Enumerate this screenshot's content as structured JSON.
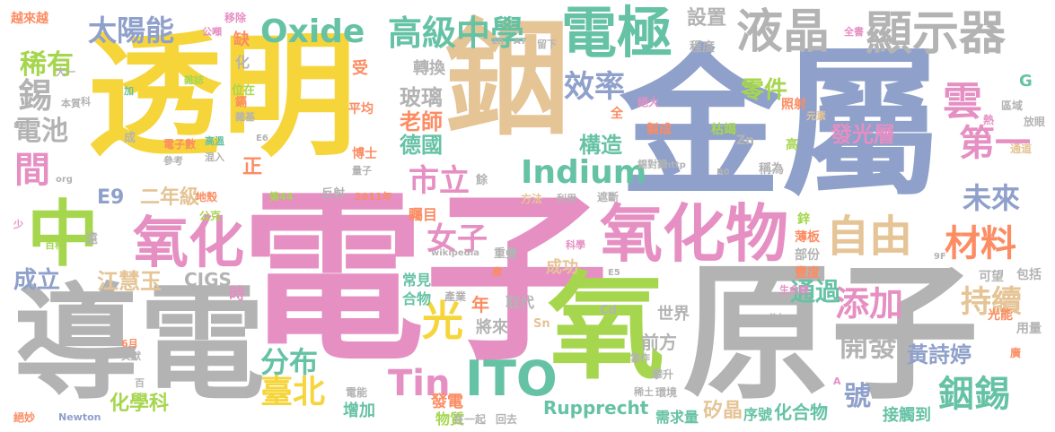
{
  "words": {
    "w_dianzi": "電子",
    "w_jinshu": "金屬",
    "w_touming": "透明",
    "w_yin": "銦",
    "w_yuanzi": "原子",
    "w_daodian": "導電",
    "w_yang": "氧",
    "w_zhong": "中",
    "w_yanghuawu": "氧化物",
    "w_yanghua": "氧化",
    "w_dianji": "電極",
    "w_yejing": "液晶",
    "w_xianshiqi": "顯示器",
    "w_ziyou": "自由",
    "w_ito": "ITO",
    "w_tin": "Tin",
    "w_indium": "Indium",
    "w_oxide": "Oxide",
    "w_gaojizhongxue": "高級中學",
    "w_taiyangneng": "太陽能",
    "w_xiyou": "稀有",
    "w_xi": "錫",
    "w_diandi": "電池",
    "w_jian": "間",
    "w_yinxi": "銦錫",
    "w_cailiao": "材料",
    "w_yun": "雲",
    "w_guang": "光",
    "w_nvzi": "女子",
    "w_shili": "市立",
    "w_taibei": "臺北",
    "w_tianjia": "添加",
    "w_chixu": "持續",
    "w_weilai": "未來",
    "w_diyi": "第一",
    "w_xiaolv": "效率",
    "w_boli": "玻璃",
    "w_laoshi": "老師",
    "w_deguo": "德國",
    "w_gouzao": "構造",
    "w_lingjian": "零件",
    "w_faguangceng": "發光層",
    "w_shezhi": "設置",
    "w_zhuanhuan": "轉換",
    "w_shou": "受",
    "w_e9": "E9",
    "w_ernianji": "二年級",
    "w_zheng": "正",
    "w_tonguo": "通過",
    "w_chengli": "成立",
    "w_jianghuiyu": "江慧玉",
    "w_fenbu": "分布",
    "w_kaifa": "開發",
    "w_huangshiting": "黃詩婷",
    "w_hao": "號",
    "w_qianfang": "前方",
    "w_shijie": "世界",
    "w_jianglai": "將來",
    "w_nian": "年",
    "w_cigs": "CIGS",
    "w_shi": "時",
    "w_huaxueke": "化學科",
    "w_rupprecht": "Rupprecht",
    "w_xujiliang": "需求量",
    "w_guijing": "矽晶",
    "w_xuhao": "序號",
    "w_huahewu": "化合物",
    "w_jiechudao": "接觸到",
    "w_zengjia": "增加",
    "w_fadian": "發電",
    "w_wuzhi": "物質",
    "w_chenggong": "成功",
    "w_changjian": "常見",
    "w_hewu": "合物",
    "w_quedai": "取代",
    "w_chanye": "產業",
    "w_zhumu": "矚目",
    "w_yuedu": "越來越",
    "w_yichu": "移除",
    "w_gongli": "公噸",
    "w_que": "缺",
    "w_hua": "化",
    "w_zazhi": "雜誌",
    "w_zaji": "雜基",
    "w_weizai": "位在",
    "w_pingjun": "平均",
    "w_gao": "高",
    "w_quan": "全",
    "w_jueda": "絕大",
    "w_zhaoshe": "照射",
    "w_yuansu": "元素",
    "w_zhicheng": "製成",
    "w_kujie": "枯竭",
    "w_chengdu": "程度",
    "w_liuxia": "留下",
    "w_quanshu": "全書",
    "w_fangyan": "放眼",
    "w_quyu": "區域",
    "w_re": "熱",
    "w_g": "G",
    "w_zn": "Zn",
    "w_tongdao": "通道",
    "w_cheng": "稱為",
    "w_xin": "鋅",
    "w_baoban": "薄板",
    "w_bufen": "部份",
    "w_fengdu": "豐度",
    "w_zazhi2": "雜質",
    "w_kewang": "可望",
    "w_baokuo": "包括",
    "w_yongliang": "用量",
    "w_guangneng": "光能",
    "w_shengmingxian": "生命線",
    "w_ke": "科",
    "w_dayi": "大一",
    "w_benzhi": "本質",
    "w_jia": "加",
    "w_cheng2": "成",
    "w_dianzishu": "電子數",
    "w_gaowen": "高溫",
    "w_hunru": "混入",
    "w_canjian": "參考",
    "w_boshi": "博士",
    "w_liangzi": "量子",
    "w_xiduixin": "錫對銦",
    "w_fanshe": "反射",
    "w_di44": "第44",
    "w_nian2011": "2011年",
    "w_dike": "地殼",
    "w_gongyuan": "公克",
    "w_yu": "餘",
    "w_fangfa": "方法",
    "w_liyong": "利用",
    "w_zheduan": "遮斷",
    "w_http": "http",
    "w_b0": "B0",
    "w_org": "org",
    "w_shao": "少",
    "w_baike": "百科",
    "w_yuan": "遠",
    "w_wikipedia": "wikipedia",
    "w_zhongyao": "重疊",
    "w_kexue": "科學",
    "w_guang2": "廣",
    "w_e5": "E5",
    "w_cd": "Cd",
    "w_sn": "Sn",
    "w_wiki": "wiki",
    "w_6yue": "6月",
    "w_wenxian": "文獻",
    "w_bai": "百",
    "w_juemiao": "絕妙",
    "w_newton": "Newton",
    "w_dianneng": "電能",
    "w_zaiyiqi": "在一起",
    "w_huiqu": "回去",
    "w_xitu": "稀土",
    "w_huanjing": "環境",
    "w_dangzuo": "當作",
    "w_pansheng": "攀升",
    "w_a": "A",
    "w_zh": "zh",
    "w_a7": "A7",
    "w_8c": "8C",
    "w_e6": "E6",
    "w_gao2": "鎘",
    "w_xi2": "錫",
    "w_9f": "9F",
    "w_guang3": "廣",
    "w_ting": "庭"
  }
}
